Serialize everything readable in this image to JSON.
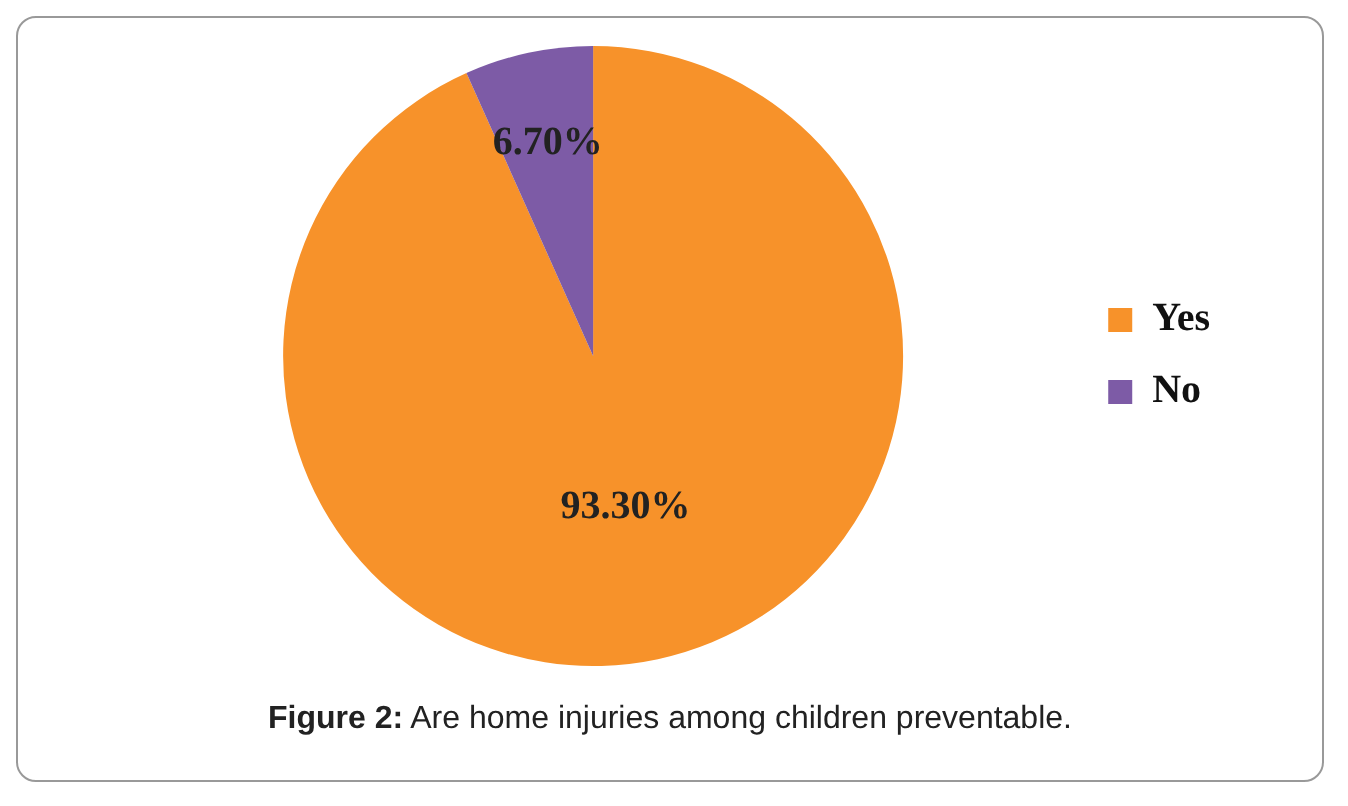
{
  "chart_data": {
    "type": "pie",
    "categories": [
      "Yes",
      "No"
    ],
    "values": [
      93.3,
      6.7
    ],
    "value_labels": [
      "93.30%",
      "6.70%"
    ],
    "colors": [
      "#f7922a",
      "#7d5ba6"
    ],
    "legend": "right",
    "annotations": [
      "Figure 2: Are home injuries among children preventable."
    ]
  }
}
